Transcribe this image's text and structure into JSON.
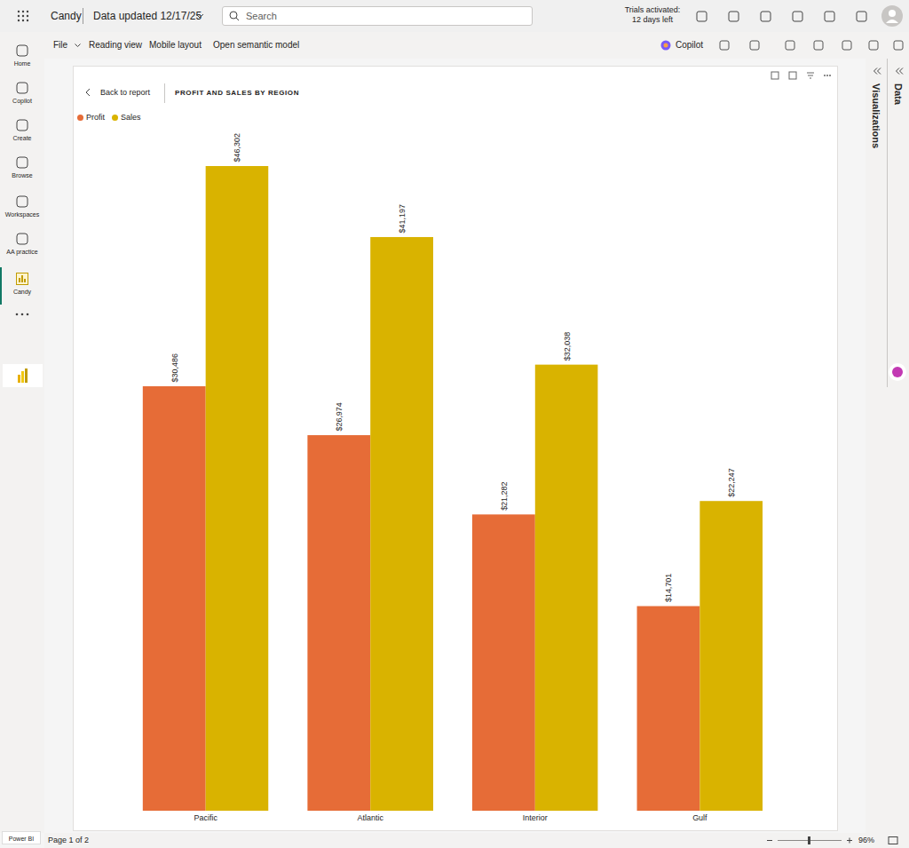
{
  "ui": {
    "app_bar": {
      "report": "Candy",
      "updated": "Data updated 12/17/25",
      "search": "Search",
      "trial": [
        "Trials activated:",
        "12 days left"
      ]
    },
    "nav": [
      "Home",
      "Copilot",
      "Create",
      "Browse",
      "Workspaces",
      "AA practice",
      "Candy"
    ],
    "toolbar": {
      "left": [
        "File",
        "Reading view",
        "Mobile layout",
        "Open semantic model"
      ],
      "copilot": "Copilot"
    },
    "report_header": {
      "back": "Back to report"
    },
    "panes": [
      "Visualizations",
      "Data"
    ],
    "status": {
      "page": "Page 1 of 2",
      "zoom": "96%"
    },
    "product": "Power BI"
  },
  "chart_data": {
    "type": "bar",
    "title": "PROFIT AND SALES BY REGION",
    "categories": [
      "Pacific",
      "Atlantic",
      "Interior",
      "Gulf"
    ],
    "series": [
      {
        "name": "Profit",
        "color": "#e66c37",
        "values": [
          30486,
          26974,
          21282,
          14701
        ],
        "value_labels": [
          "$30,486",
          "$26,974",
          "$21,282",
          "$14,701"
        ]
      },
      {
        "name": "Sales",
        "color": "#d9b300",
        "values": [
          46302,
          41197,
          32038,
          22247
        ],
        "value_labels": [
          "$46,302",
          "$41,197",
          "$32,038",
          "$22,247"
        ]
      }
    ],
    "ylim": [
      0,
      46302
    ],
    "grid": false,
    "legend": "top-left",
    "data_labels": true,
    "tick_labels": "x"
  }
}
